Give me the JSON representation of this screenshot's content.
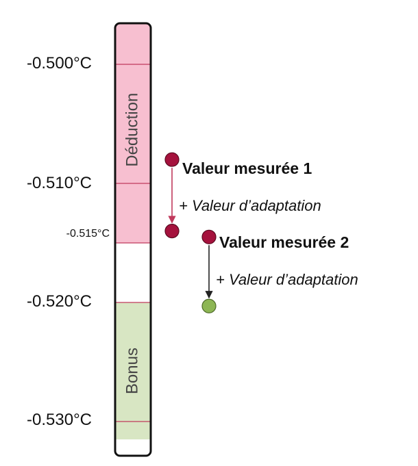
{
  "scale": {
    "unit": "°C",
    "ticks": [
      {
        "value": -0.5,
        "label": "-0.500°C",
        "major": true
      },
      {
        "value": -0.51,
        "label": "-0.510°C",
        "major": true
      },
      {
        "value": -0.515,
        "label": "-0.515°C",
        "major": false
      },
      {
        "value": -0.52,
        "label": "-0.520°C",
        "major": true
      },
      {
        "value": -0.53,
        "label": "-0.530°C",
        "major": true
      }
    ]
  },
  "zones": [
    {
      "name": "deduction",
      "label": "Déduction",
      "color": "#f7bfd0",
      "from": -0.4965,
      "to": -0.515
    },
    {
      "name": "neutral",
      "label": "",
      "color": "#ffffff",
      "from": -0.515,
      "to": -0.52
    },
    {
      "name": "bonus",
      "label": "Bonus",
      "color": "#d8e6c3",
      "from": -0.52,
      "to": -0.5315
    }
  ],
  "measurements": [
    {
      "label": "Valeur mesurée 1",
      "adaptation_label": "+ Valeur d’adaptation",
      "measured_value": -0.508,
      "adapted_value": -0.514,
      "measured_color": "#a5123d",
      "adapted_color": "#a5123d"
    },
    {
      "label": "Valeur mesurée 2",
      "adaptation_label": "+ Valeur d’adaptation",
      "measured_value": -0.5145,
      "adapted_value": -0.5203,
      "measured_color": "#a5123d",
      "adapted_color": "#8db654"
    }
  ],
  "colors": {
    "bar_outline": "#111111",
    "divider": "#c0395c",
    "arrow_1": "#c0395c",
    "arrow_2": "#222222",
    "zone_text": "#444444"
  }
}
